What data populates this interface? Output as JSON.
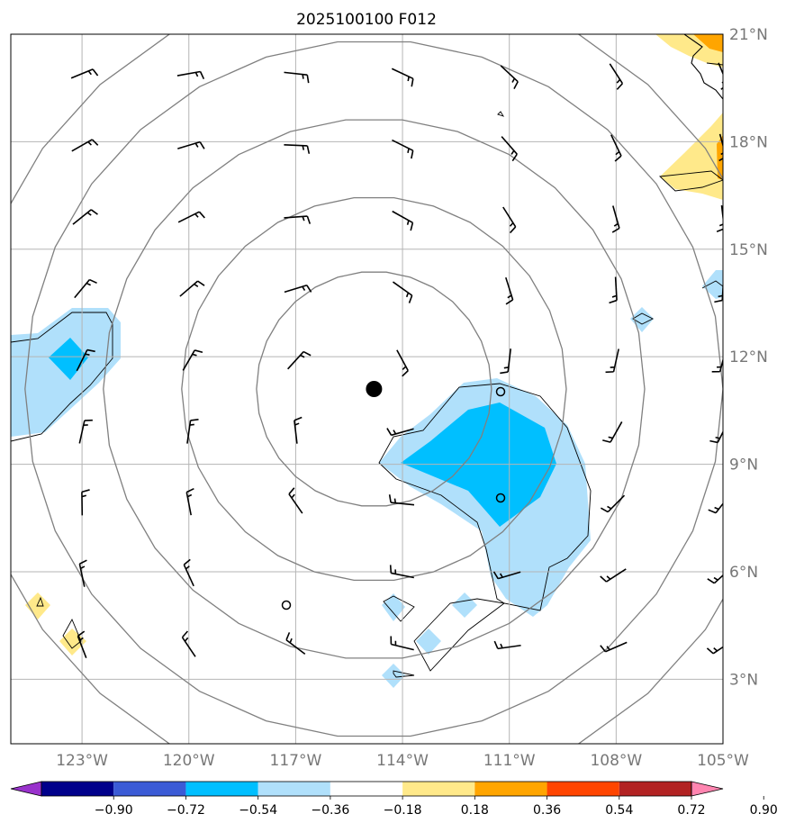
{
  "title": "2025100100 F012",
  "map": {
    "lon_range": [
      -125,
      -105
    ],
    "lat_range": [
      1.2,
      21
    ],
    "lon_ticks": [
      {
        "value": -123,
        "label": "123°W"
      },
      {
        "value": -120,
        "label": "120°W"
      },
      {
        "value": -117,
        "label": "117°W"
      },
      {
        "value": -114,
        "label": "114°W"
      },
      {
        "value": -111,
        "label": "111°W"
      },
      {
        "value": -108,
        "label": "108°W"
      },
      {
        "value": -105,
        "label": "105°W"
      }
    ],
    "lat_ticks": [
      {
        "value": 3,
        "label": "3°N"
      },
      {
        "value": 6,
        "label": "6°N"
      },
      {
        "value": 9,
        "label": "9°N"
      },
      {
        "value": 12,
        "label": "12°N"
      },
      {
        "value": 15,
        "label": "15°N"
      },
      {
        "value": 18,
        "label": "18°N"
      },
      {
        "value": 21,
        "label": "21°N"
      }
    ],
    "storm_center": {
      "lon": -114.8,
      "lat": 11.1
    },
    "range_rings_deg": [
      3.3,
      5.4,
      7.6,
      9.8,
      11.5
    ]
  },
  "colorbar": {
    "colors": [
      "#9932cc",
      "#00008b",
      "#3b5bd6",
      "#00bfff",
      "#b0e0fb",
      "#ffffff",
      "#ffe98a",
      "#ffa500",
      "#ff4500",
      "#b22222",
      "#ff85b0"
    ],
    "tick_labels": [
      "−0.90",
      "−0.72",
      "−0.54",
      "−0.36",
      "−0.18",
      "0.18",
      "0.36",
      "0.54",
      "0.72",
      "0.90"
    ]
  },
  "colors": {
    "gridline": "#b5b5b5",
    "ring": "#808080",
    "light_blue": "#b0e0fb",
    "deep_blue": "#00bfff",
    "yellow": "#ffe98a",
    "orange": "#ffa500"
  }
}
